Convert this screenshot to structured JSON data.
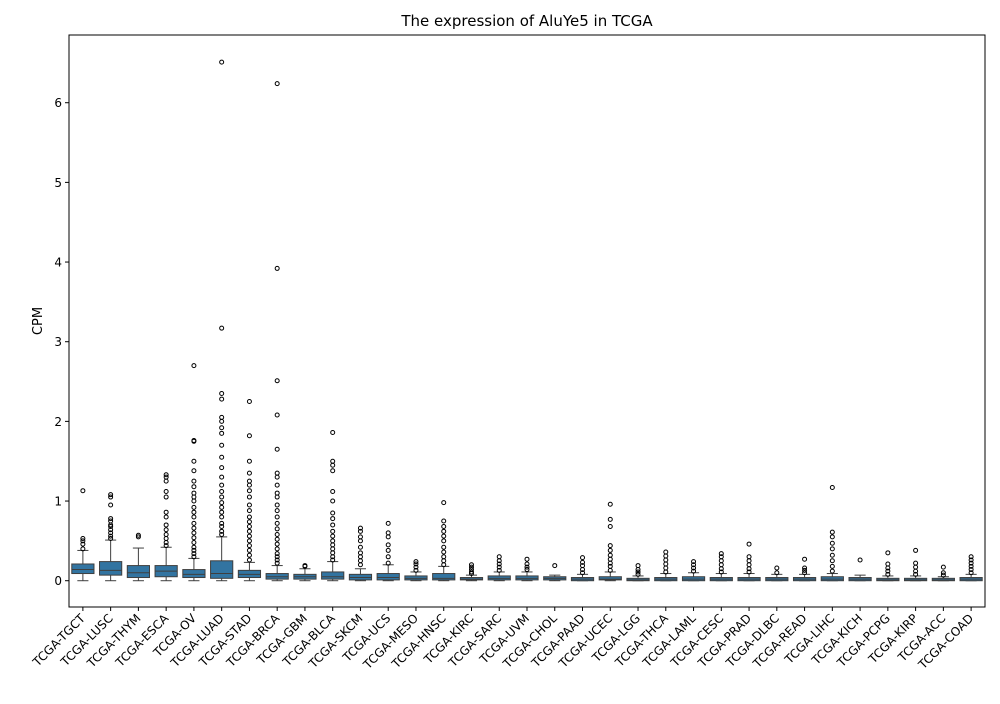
{
  "chart_data": {
    "type": "box",
    "title": "The expression of AluYe5 in TCGA",
    "xlabel": "",
    "ylabel": "CPM",
    "ylim": [
      -0.33,
      6.85
    ],
    "yticks": [
      0,
      1,
      2,
      3,
      4,
      5,
      6
    ],
    "box_color": "#3274a1",
    "grid": false,
    "legend": "none",
    "categories": [
      "TCGA-TGCT",
      "TCGA-LUSC",
      "TCGA-THYM",
      "TCGA-ESCA",
      "TCGA-OV",
      "TCGA-LUAD",
      "TCGA-STAD",
      "TCGA-BRCA",
      "TCGA-GBM",
      "TCGA-BLCA",
      "TCGA-SKCM",
      "TCGA-UCS",
      "TCGA-MESO",
      "TCGA-HNSC",
      "TCGA-KIRC",
      "TCGA-SARC",
      "TCGA-UVM",
      "TCGA-CHOL",
      "TCGA-PAAD",
      "TCGA-UCEC",
      "TCGA-LGG",
      "TCGA-THCA",
      "TCGA-LAML",
      "TCGA-CESC",
      "TCGA-PRAD",
      "TCGA-DLBC",
      "TCGA-READ",
      "TCGA-LIHC",
      "TCGA-KICH",
      "TCGA-PCPG",
      "TCGA-KIRP",
      "TCGA-ACC",
      "TCGA-COAD"
    ],
    "boxes": [
      {
        "min": 0.0,
        "q1": 0.09,
        "median": 0.14,
        "q3": 0.21,
        "max": 0.38,
        "outliers": [
          0.4,
          0.46,
          0.5,
          0.53,
          1.13
        ]
      },
      {
        "min": 0.0,
        "q1": 0.07,
        "median": 0.13,
        "q3": 0.24,
        "max": 0.51,
        "outliers": [
          0.53,
          0.56,
          0.6,
          0.64,
          0.68,
          0.7,
          0.75,
          0.78,
          0.95,
          1.05,
          1.08
        ]
      },
      {
        "min": 0.0,
        "q1": 0.04,
        "median": 0.1,
        "q3": 0.19,
        "max": 0.41,
        "outliers": [
          0.55,
          0.57
        ]
      },
      {
        "min": 0.0,
        "q1": 0.05,
        "median": 0.12,
        "q3": 0.19,
        "max": 0.42,
        "outliers": [
          0.44,
          0.48,
          0.53,
          0.58,
          0.64,
          0.7,
          0.8,
          0.86,
          1.05,
          1.12,
          1.25,
          1.3,
          1.33
        ]
      },
      {
        "min": 0.0,
        "q1": 0.04,
        "median": 0.08,
        "q3": 0.14,
        "max": 0.28,
        "outliers": [
          0.3,
          0.34,
          0.38,
          0.42,
          0.48,
          0.54,
          0.6,
          0.66,
          0.72,
          0.8,
          0.86,
          0.92,
          1.0,
          1.05,
          1.1,
          1.18,
          1.25,
          1.38,
          1.5,
          1.75,
          1.76,
          2.7
        ]
      },
      {
        "min": 0.0,
        "q1": 0.03,
        "median": 0.09,
        "q3": 0.25,
        "max": 0.55,
        "outliers": [
          0.58,
          0.62,
          0.68,
          0.72,
          0.8,
          0.86,
          0.92,
          0.98,
          1.05,
          1.12,
          1.2,
          1.3,
          1.42,
          1.55,
          1.7,
          1.85,
          1.92,
          2.0,
          2.05,
          2.28,
          2.35,
          3.17,
          6.51
        ]
      },
      {
        "min": 0.0,
        "q1": 0.04,
        "median": 0.08,
        "q3": 0.13,
        "max": 0.23,
        "outliers": [
          0.26,
          0.32,
          0.38,
          0.44,
          0.5,
          0.56,
          0.62,
          0.68,
          0.74,
          0.8,
          0.88,
          0.95,
          1.05,
          1.13,
          1.2,
          1.25,
          1.35,
          1.5,
          1.82,
          2.25
        ]
      },
      {
        "min": 0.0,
        "q1": 0.02,
        "median": 0.05,
        "q3": 0.09,
        "max": 0.19,
        "outliers": [
          0.22,
          0.26,
          0.3,
          0.34,
          0.4,
          0.46,
          0.52,
          0.58,
          0.65,
          0.72,
          0.8,
          0.88,
          0.95,
          1.05,
          1.1,
          1.2,
          1.3,
          1.35,
          1.65,
          2.08,
          2.51,
          3.92,
          6.24
        ]
      },
      {
        "min": 0.0,
        "q1": 0.02,
        "median": 0.05,
        "q3": 0.08,
        "max": 0.15,
        "outliers": [
          0.18,
          0.19
        ]
      },
      {
        "min": 0.0,
        "q1": 0.02,
        "median": 0.05,
        "q3": 0.11,
        "max": 0.24,
        "outliers": [
          0.26,
          0.3,
          0.35,
          0.4,
          0.45,
          0.5,
          0.56,
          0.62,
          0.7,
          0.78,
          0.85,
          1.0,
          1.12,
          1.38,
          1.45,
          1.5,
          1.86
        ]
      },
      {
        "min": 0.0,
        "q1": 0.01,
        "median": 0.04,
        "q3": 0.08,
        "max": 0.15,
        "outliers": [
          0.2,
          0.25,
          0.3,
          0.35,
          0.42,
          0.5,
          0.55,
          0.62,
          0.66
        ]
      },
      {
        "min": 0.0,
        "q1": 0.01,
        "median": 0.04,
        "q3": 0.09,
        "max": 0.2,
        "outliers": [
          0.22,
          0.3,
          0.38,
          0.45,
          0.55,
          0.6,
          0.72
        ]
      },
      {
        "min": 0.0,
        "q1": 0.01,
        "median": 0.03,
        "q3": 0.06,
        "max": 0.11,
        "outliers": [
          0.13,
          0.17,
          0.21,
          0.24
        ]
      },
      {
        "min": 0.0,
        "q1": 0.01,
        "median": 0.03,
        "q3": 0.09,
        "max": 0.18,
        "outliers": [
          0.2,
          0.25,
          0.3,
          0.36,
          0.42,
          0.5,
          0.56,
          0.62,
          0.68,
          0.75,
          0.98
        ]
      },
      {
        "min": 0.0,
        "q1": 0.01,
        "median": 0.02,
        "q3": 0.04,
        "max": 0.07,
        "outliers": [
          0.09,
          0.11,
          0.14,
          0.17,
          0.2
        ]
      },
      {
        "min": 0.0,
        "q1": 0.01,
        "median": 0.03,
        "q3": 0.06,
        "max": 0.11,
        "outliers": [
          0.13,
          0.17,
          0.21,
          0.25,
          0.3
        ]
      },
      {
        "min": 0.0,
        "q1": 0.01,
        "median": 0.03,
        "q3": 0.06,
        "max": 0.11,
        "outliers": [
          0.14,
          0.17,
          0.21,
          0.27
        ]
      },
      {
        "min": 0.0,
        "q1": 0.01,
        "median": 0.03,
        "q3": 0.05,
        "max": 0.07,
        "outliers": [
          0.19
        ]
      },
      {
        "min": 0.0,
        "q1": 0.0,
        "median": 0.02,
        "q3": 0.04,
        "max": 0.08,
        "outliers": [
          0.1,
          0.14,
          0.19,
          0.23,
          0.29
        ]
      },
      {
        "min": 0.0,
        "q1": 0.01,
        "median": 0.02,
        "q3": 0.05,
        "max": 0.11,
        "outliers": [
          0.13,
          0.18,
          0.22,
          0.27,
          0.32,
          0.38,
          0.44,
          0.68,
          0.77,
          0.96
        ]
      },
      {
        "min": 0.0,
        "q1": 0.0,
        "median": 0.01,
        "q3": 0.03,
        "max": 0.06,
        "outliers": [
          0.08,
          0.11,
          0.14,
          0.19
        ]
      },
      {
        "min": 0.0,
        "q1": 0.0,
        "median": 0.02,
        "q3": 0.04,
        "max": 0.09,
        "outliers": [
          0.11,
          0.16,
          0.21,
          0.26,
          0.31,
          0.36
        ]
      },
      {
        "min": 0.0,
        "q1": 0.0,
        "median": 0.02,
        "q3": 0.05,
        "max": 0.1,
        "outliers": [
          0.12,
          0.16,
          0.2,
          0.24
        ]
      },
      {
        "min": 0.0,
        "q1": 0.0,
        "median": 0.02,
        "q3": 0.04,
        "max": 0.09,
        "outliers": [
          0.11,
          0.15,
          0.2,
          0.25,
          0.3,
          0.34
        ]
      },
      {
        "min": 0.0,
        "q1": 0.0,
        "median": 0.02,
        "q3": 0.04,
        "max": 0.09,
        "outliers": [
          0.11,
          0.15,
          0.2,
          0.25,
          0.3,
          0.46
        ]
      },
      {
        "min": 0.0,
        "q1": 0.0,
        "median": 0.02,
        "q3": 0.04,
        "max": 0.08,
        "outliers": [
          0.1,
          0.16
        ]
      },
      {
        "min": 0.0,
        "q1": 0.0,
        "median": 0.02,
        "q3": 0.04,
        "max": 0.08,
        "outliers": [
          0.1,
          0.13,
          0.16,
          0.27
        ]
      },
      {
        "min": 0.0,
        "q1": 0.0,
        "median": 0.02,
        "q3": 0.05,
        "max": 0.09,
        "outliers": [
          0.12,
          0.18,
          0.25,
          0.32,
          0.4,
          0.47,
          0.55,
          0.61,
          1.17
        ]
      },
      {
        "min": 0.0,
        "q1": 0.0,
        "median": 0.02,
        "q3": 0.04,
        "max": 0.07,
        "outliers": [
          0.26
        ]
      },
      {
        "min": 0.0,
        "q1": 0.0,
        "median": 0.01,
        "q3": 0.03,
        "max": 0.06,
        "outliers": [
          0.08,
          0.12,
          0.16,
          0.21,
          0.35
        ]
      },
      {
        "min": 0.0,
        "q1": 0.0,
        "median": 0.01,
        "q3": 0.03,
        "max": 0.06,
        "outliers": [
          0.08,
          0.12,
          0.17,
          0.22,
          0.38
        ]
      },
      {
        "min": 0.0,
        "q1": 0.0,
        "median": 0.01,
        "q3": 0.03,
        "max": 0.05,
        "outliers": [
          0.07,
          0.1,
          0.17
        ]
      },
      {
        "min": 0.0,
        "q1": 0.0,
        "median": 0.02,
        "q3": 0.04,
        "max": 0.08,
        "outliers": [
          0.1,
          0.14,
          0.18,
          0.22,
          0.26,
          0.3
        ]
      }
    ]
  }
}
